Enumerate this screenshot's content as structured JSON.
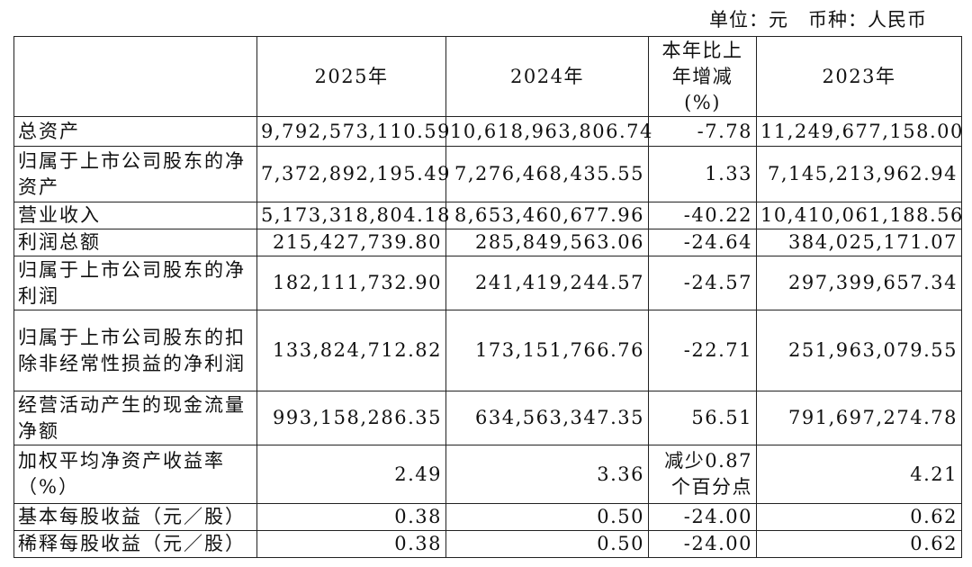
{
  "unit_line": "单位：元　币种：人民币",
  "table": {
    "header": [
      "",
      "2025年",
      "2024年",
      "本年比上年增减(%)",
      "2023年"
    ],
    "rows": [
      [
        "总资产",
        "9,792,573,110.59",
        "10,618,963,806.74",
        "-7.78",
        "11,249,677,158.00"
      ],
      [
        "归属于上市公司股东的净资产",
        "7,372,892,195.49",
        "7,276,468,435.55",
        "1.33",
        "7,145,213,962.94"
      ],
      [
        "营业收入",
        "5,173,318,804.18",
        "8,653,460,677.96",
        "-40.22",
        "10,410,061,188.56"
      ],
      [
        "利润总额",
        "215,427,739.80",
        "285,849,563.06",
        "-24.64",
        "384,025,171.07"
      ],
      [
        "归属于上市公司股东的净利润",
        "182,111,732.90",
        "241,419,244.57",
        "-24.57",
        "297,399,657.34"
      ],
      [
        "归属于上市公司股东的扣除非经常性损益的净利润",
        "133,824,712.82",
        "173,151,766.76",
        "-22.71",
        "251,963,079.55"
      ],
      [
        "经营活动产生的现金流量净额",
        "993,158,286.35",
        "634,563,347.35",
        "56.51",
        "791,697,274.78"
      ],
      [
        "加权平均净资产收益率（%）",
        "2.49",
        "3.36",
        "减少0.87个百分点",
        "4.21"
      ],
      [
        "基本每股收益（元／股）",
        "0.38",
        "0.50",
        "-24.00",
        "0.62"
      ],
      [
        "稀释每股收益（元／股）",
        "0.38",
        "0.50",
        "-24.00",
        "0.62"
      ]
    ]
  }
}
